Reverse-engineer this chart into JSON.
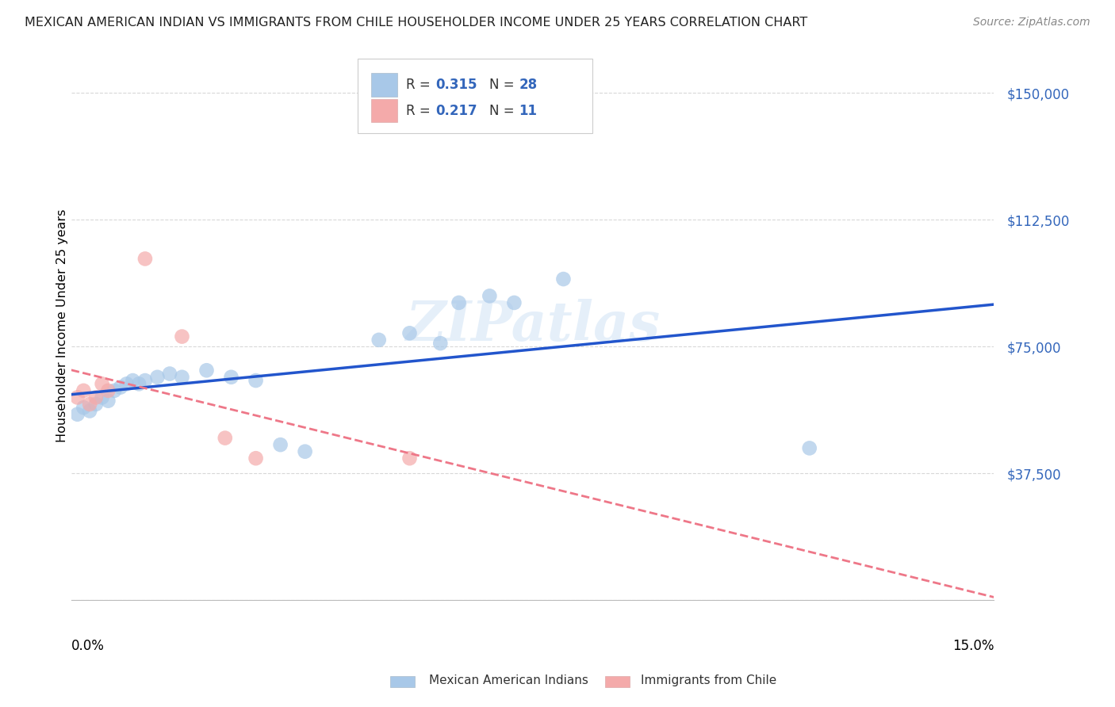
{
  "title": "MEXICAN AMERICAN INDIAN VS IMMIGRANTS FROM CHILE HOUSEHOLDER INCOME UNDER 25 YEARS CORRELATION CHART",
  "source": "Source: ZipAtlas.com",
  "ylabel": "Householder Income Under 25 years",
  "xmin": 0.0,
  "xmax": 0.15,
  "ymin": 0,
  "ymax": 162500,
  "yticks": [
    0,
    37500,
    75000,
    112500,
    150000
  ],
  "ytick_labels": [
    "",
    "$37,500",
    "$75,000",
    "$112,500",
    "$150,000"
  ],
  "legend_r1": "0.315",
  "legend_n1": "28",
  "legend_r2": "0.217",
  "legend_n2": "11",
  "legend_label1": "Mexican American Indians",
  "legend_label2": "Immigrants from Chile",
  "blue_fill": "#A8C8E8",
  "pink_fill": "#F4AAAA",
  "blue_line": "#2255CC",
  "pink_line": "#EE7788",
  "blue_scatter_x": [
    0.001,
    0.002,
    0.003,
    0.004,
    0.005,
    0.006,
    0.007,
    0.008,
    0.009,
    0.01,
    0.011,
    0.012,
    0.014,
    0.016,
    0.018,
    0.022,
    0.026,
    0.03,
    0.034,
    0.038,
    0.05,
    0.055,
    0.06,
    0.063,
    0.068,
    0.072,
    0.08,
    0.12
  ],
  "blue_scatter_y": [
    55000,
    57000,
    56000,
    58000,
    60000,
    59000,
    62000,
    63000,
    64000,
    65000,
    64000,
    65000,
    66000,
    67000,
    66000,
    68000,
    66000,
    65000,
    46000,
    44000,
    77000,
    79000,
    76000,
    88000,
    90000,
    88000,
    95000,
    45000
  ],
  "pink_scatter_x": [
    0.001,
    0.002,
    0.003,
    0.004,
    0.005,
    0.006,
    0.012,
    0.018,
    0.025,
    0.03,
    0.055
  ],
  "pink_scatter_y": [
    60000,
    62000,
    58000,
    60000,
    64000,
    62000,
    101000,
    78000,
    48000,
    42000,
    42000
  ],
  "watermark": "ZIPatlas",
  "bg_color": "#FFFFFF",
  "grid_color": "#D8D8D8",
  "legend_text_color": "#3366BB",
  "legend_label_color": "#555555"
}
